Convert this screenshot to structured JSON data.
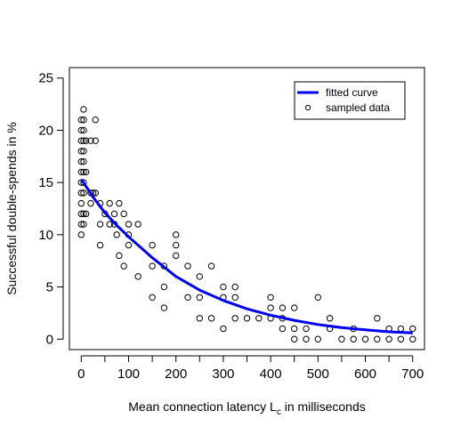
{
  "chart_data": {
    "type": "scatter",
    "title": "",
    "xlabel": "Mean connection latency L",
    "xlabel_subscript": "c",
    "xlabel_suffix": " in milliseconds",
    "ylabel": "Successful double-spends in %",
    "xlim": [
      -25,
      725
    ],
    "ylim": [
      -1,
      26
    ],
    "xticks": [
      0,
      100,
      200,
      300,
      400,
      500,
      600,
      700
    ],
    "yticks": [
      0,
      5,
      10,
      15,
      20,
      25
    ],
    "grid": false,
    "legend": {
      "position": "top-right",
      "entries": [
        {
          "label": "fitted curve",
          "style": "line",
          "color": "#0000ee"
        },
        {
          "label": "sampled data",
          "style": "point",
          "color": "#000000"
        }
      ]
    },
    "series": [
      {
        "name": "fitted curve",
        "type": "line",
        "color": "#0000ee",
        "x": [
          0,
          25,
          50,
          75,
          100,
          125,
          150,
          175,
          200,
          250,
          300,
          350,
          400,
          450,
          500,
          550,
          600,
          650,
          700
        ],
        "y": [
          15.3,
          13.6,
          12.1,
          10.9,
          9.8,
          8.8,
          7.8,
          6.9,
          6.0,
          4.7,
          3.7,
          2.9,
          2.3,
          1.8,
          1.4,
          1.1,
          0.9,
          0.7,
          0.6
        ]
      },
      {
        "name": "sampled data",
        "type": "scatter",
        "color": "#000000",
        "points": [
          [
            0,
            10
          ],
          [
            0,
            11
          ],
          [
            0,
            12
          ],
          [
            0,
            13
          ],
          [
            0,
            14
          ],
          [
            0,
            15
          ],
          [
            0,
            16
          ],
          [
            0,
            17
          ],
          [
            0,
            18
          ],
          [
            0,
            19
          ],
          [
            0,
            20
          ],
          [
            0,
            21
          ],
          [
            5,
            11
          ],
          [
            5,
            12
          ],
          [
            5,
            14
          ],
          [
            5,
            15
          ],
          [
            5,
            16
          ],
          [
            5,
            17
          ],
          [
            5,
            18
          ],
          [
            5,
            19
          ],
          [
            5,
            20
          ],
          [
            5,
            21
          ],
          [
            5,
            22
          ],
          [
            10,
            12
          ],
          [
            10,
            16
          ],
          [
            10,
            19
          ],
          [
            20,
            13
          ],
          [
            20,
            14
          ],
          [
            20,
            19
          ],
          [
            25,
            14
          ],
          [
            30,
            19
          ],
          [
            30,
            21
          ],
          [
            30,
            14
          ],
          [
            40,
            9
          ],
          [
            40,
            11
          ],
          [
            40,
            13
          ],
          [
            50,
            12
          ],
          [
            60,
            11
          ],
          [
            60,
            13
          ],
          [
            70,
            12
          ],
          [
            70,
            11
          ],
          [
            75,
            10
          ],
          [
            80,
            8
          ],
          [
            80,
            13
          ],
          [
            90,
            7
          ],
          [
            90,
            12
          ],
          [
            100,
            9
          ],
          [
            100,
            10
          ],
          [
            100,
            11
          ],
          [
            120,
            6
          ],
          [
            120,
            11
          ],
          [
            150,
            4
          ],
          [
            150,
            7
          ],
          [
            150,
            9
          ],
          [
            175,
            3
          ],
          [
            175,
            5
          ],
          [
            175,
            7
          ],
          [
            200,
            8
          ],
          [
            200,
            9
          ],
          [
            200,
            10
          ],
          [
            225,
            4
          ],
          [
            225,
            7
          ],
          [
            250,
            2
          ],
          [
            250,
            4
          ],
          [
            250,
            6
          ],
          [
            275,
            2
          ],
          [
            275,
            7
          ],
          [
            300,
            1
          ],
          [
            300,
            4
          ],
          [
            300,
            5
          ],
          [
            325,
            2
          ],
          [
            325,
            4
          ],
          [
            325,
            5
          ],
          [
            350,
            2
          ],
          [
            375,
            2
          ],
          [
            400,
            2
          ],
          [
            400,
            3
          ],
          [
            400,
            4
          ],
          [
            425,
            1
          ],
          [
            425,
            2
          ],
          [
            425,
            3
          ],
          [
            450,
            0
          ],
          [
            450,
            1
          ],
          [
            450,
            3
          ],
          [
            475,
            0
          ],
          [
            475,
            1
          ],
          [
            500,
            0
          ],
          [
            500,
            4
          ],
          [
            525,
            1
          ],
          [
            525,
            2
          ],
          [
            550,
            0
          ],
          [
            575,
            0
          ],
          [
            575,
            1
          ],
          [
            600,
            0
          ],
          [
            625,
            0
          ],
          [
            625,
            2
          ],
          [
            650,
            0
          ],
          [
            650,
            1
          ],
          [
            675,
            0
          ],
          [
            675,
            1
          ],
          [
            700,
            0
          ],
          [
            700,
            1
          ]
        ]
      }
    ]
  }
}
